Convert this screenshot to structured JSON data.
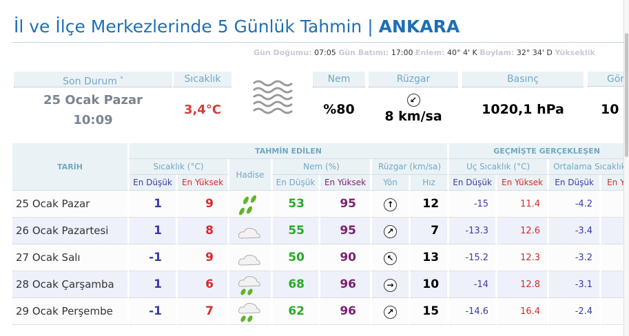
{
  "title": {
    "prefix": "İl ve İlçe Merkezlerinde 5 Günlük Tahmin | ",
    "city": "ANKARA"
  },
  "info": [
    {
      "k": "Gün Doğumu:",
      "v": "07:05"
    },
    {
      "k": "Gün Batımı:",
      "v": "17:00"
    },
    {
      "k": "Enlem:",
      "v": "40° 4' K"
    },
    {
      "k": "Boylam:",
      "v": "32° 34' D"
    },
    {
      "k": "Yükseklik",
      "v": ""
    }
  ],
  "current": {
    "son_durum_label": "Son Durum",
    "son_durum_mark": "*",
    "date": "25 Ocak Pazar",
    "time": "10:09",
    "temp_label": "Sıcaklık",
    "temp": "3,4°C",
    "icon": "fog-icon",
    "nem_label": "Nem",
    "nem": "%80",
    "ruzgar_label": "Rüzgar",
    "wind_dir": "↙",
    "wind": "8 km/sa",
    "basinc_label": "Basınç",
    "basinc": "1020,1 hPa",
    "gor_label": "Görüş",
    "gor": "10"
  },
  "table": {
    "tarih": "TARİH",
    "tahmin": "TAHMİN EDİLEN",
    "gecmis": "GEÇMİŞTE GERÇEKLEŞEN",
    "sicaklik": "Sıcaklık (°C)",
    "hadise": "Hadise",
    "nem": "Nem (%)",
    "ruzgar": "Rüzgar (km/sa)",
    "uc": "Uç Sıcaklık (°C)",
    "ortalama": "Ortalama Sıcaklık (°C)",
    "min": "En Düşük",
    "max": "En Yüksek",
    "yon": "Yön",
    "hiz": "Hız"
  },
  "rows": [
    {
      "date": "25 Ocak Pazar",
      "tmin": "1",
      "tmax": "9",
      "hadise": "rain-icon",
      "hmin": "53",
      "hmax": "95",
      "dir": "↑",
      "speed": "12",
      "umin": "-15",
      "umax": "11.4",
      "omin": "-4.2"
    },
    {
      "date": "26 Ocak Pazartesi",
      "tmin": "1",
      "tmax": "8",
      "hadise": "cloudy-icon",
      "hmin": "55",
      "hmax": "95",
      "dir": "↗",
      "speed": "7",
      "umin": "-13.3",
      "umax": "12.6",
      "omin": "-3.4"
    },
    {
      "date": "27 Ocak Salı",
      "tmin": "-1",
      "tmax": "9",
      "hadise": "cloudy-icon",
      "hmin": "50",
      "hmax": "90",
      "dir": "↖",
      "speed": "13",
      "umin": "-15.2",
      "umax": "12.3",
      "omin": "-3.2"
    },
    {
      "date": "28 Ocak Çarşamba",
      "tmin": "1",
      "tmax": "6",
      "hadise": "rain-cloud-icon",
      "hmin": "68",
      "hmax": "96",
      "dir": "→",
      "speed": "10",
      "umin": "-14",
      "umax": "12.8",
      "omin": "-3.1"
    },
    {
      "date": "29 Ocak Perşembe",
      "tmin": "-1",
      "tmax": "7",
      "hadise": "rain-cloud-icon",
      "hmin": "62",
      "hmax": "96",
      "dir": "↗",
      "speed": "15",
      "umin": "-14.6",
      "umax": "16.4",
      "omin": "-2.4"
    }
  ],
  "colors": {
    "title": "#1f6fb4",
    "header_bg": "#ebf2f6",
    "header_text": "#6fa8c4",
    "low": "#3a3aa8",
    "high": "#d42a2a",
    "humidity_low": "#2aa82a",
    "humidity_high": "#7a1f6f"
  }
}
